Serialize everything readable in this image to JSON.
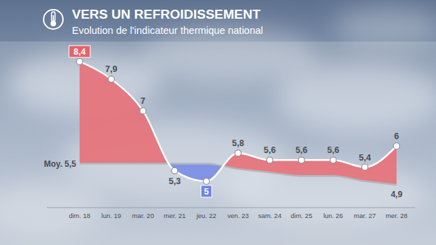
{
  "chart_data": {
    "type": "line",
    "title": "VERS UN REFROIDISSEMENT",
    "subtitle": "Evolution de l'indicateur thermique national",
    "categories": [
      "dim. 18",
      "lun. 19",
      "mar. 20",
      "mer. 21",
      "jeu. 22",
      "ven. 23",
      "sam. 24",
      "dim. 25",
      "lun. 26",
      "mar. 27",
      "mer. 28"
    ],
    "series": [
      {
        "color": "#ffffff",
        "values": [
          8.4,
          7.9,
          7,
          5.3,
          5,
          5.8,
          5.6,
          5.6,
          5.6,
          5.4,
          6
        ],
        "value_labels": [
          "8,4",
          "7,9",
          "7",
          "5,3",
          "5",
          "5,8",
          "5,6",
          "5,6",
          "5,6",
          "5,4",
          "6"
        ]
      },
      {
        "color": "#b3b6bb",
        "values": [
          5.5,
          5.5,
          5.5,
          5.5,
          5.5,
          5.35,
          5.25,
          5.15,
          5.15,
          5.0,
          4.9
        ],
        "value_labels": [
          "Moy. 5,5",
          null,
          null,
          null,
          null,
          null,
          null,
          null,
          null,
          null,
          "4,9"
        ]
      }
    ],
    "ylim": [
      4.25,
      9.5
    ],
    "tick_labels": "x",
    "data_labels": true,
    "grid": false
  }
}
